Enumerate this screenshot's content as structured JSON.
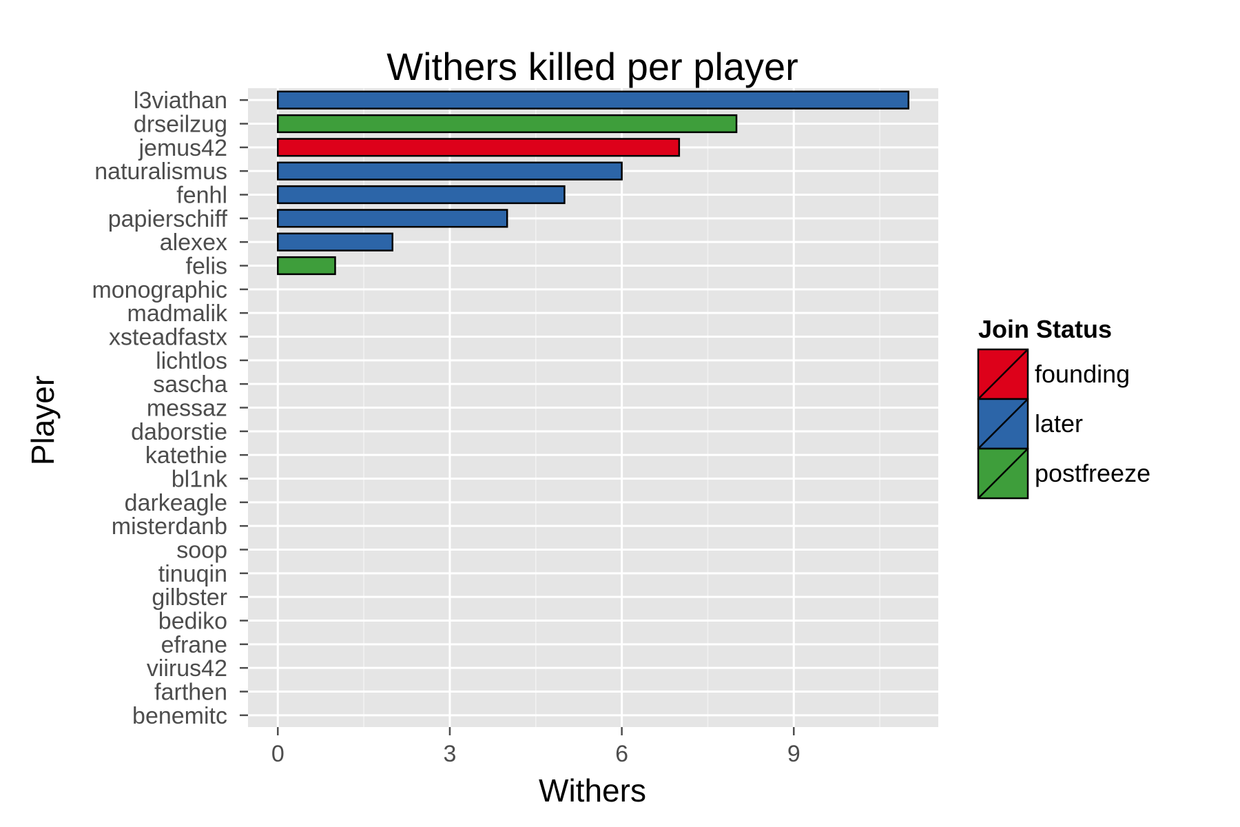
{
  "chart_data": {
    "type": "bar",
    "orientation": "horizontal",
    "title": "Withers killed per player",
    "xlabel": "Withers",
    "ylabel": "Player",
    "xlim": [
      -0.52,
      11.52
    ],
    "xticks": [
      0,
      3,
      6,
      9
    ],
    "grid": true,
    "legend_position": "right",
    "legend_title": "Join Status",
    "legend": [
      {
        "name": "founding",
        "color": "#dd011a"
      },
      {
        "name": "later",
        "color": "#2c65a8"
      },
      {
        "name": "postfreeze",
        "color": "#3e9e3b"
      }
    ],
    "categories": [
      "l3viathan",
      "drseilzug",
      "jemus42",
      "naturalismus",
      "fenhl",
      "papierschiff",
      "alexex",
      "felis",
      "monographic",
      "madmalik",
      "xsteadfastx",
      "lichtlos",
      "sascha",
      "messaz",
      "daborstie",
      "katethie",
      "bl1nk",
      "darkeagle",
      "misterdanb",
      "soop",
      "tinuqin",
      "gilbster",
      "bediko",
      "efrane",
      "viirus42",
      "farthen",
      "benemitc"
    ],
    "values": [
      11,
      8,
      7,
      6,
      5,
      4,
      2,
      1,
      0,
      0,
      0,
      0,
      0,
      0,
      0,
      0,
      0,
      0,
      0,
      0,
      0,
      0,
      0,
      0,
      0,
      0,
      0
    ],
    "status": [
      "later",
      "postfreeze",
      "founding",
      "later",
      "later",
      "later",
      "later",
      "postfreeze",
      "later",
      "later",
      "later",
      "later",
      "later",
      "later",
      "later",
      "later",
      "later",
      "later",
      "later",
      "later",
      "later",
      "later",
      "later",
      "later",
      "later",
      "later",
      "later"
    ]
  }
}
